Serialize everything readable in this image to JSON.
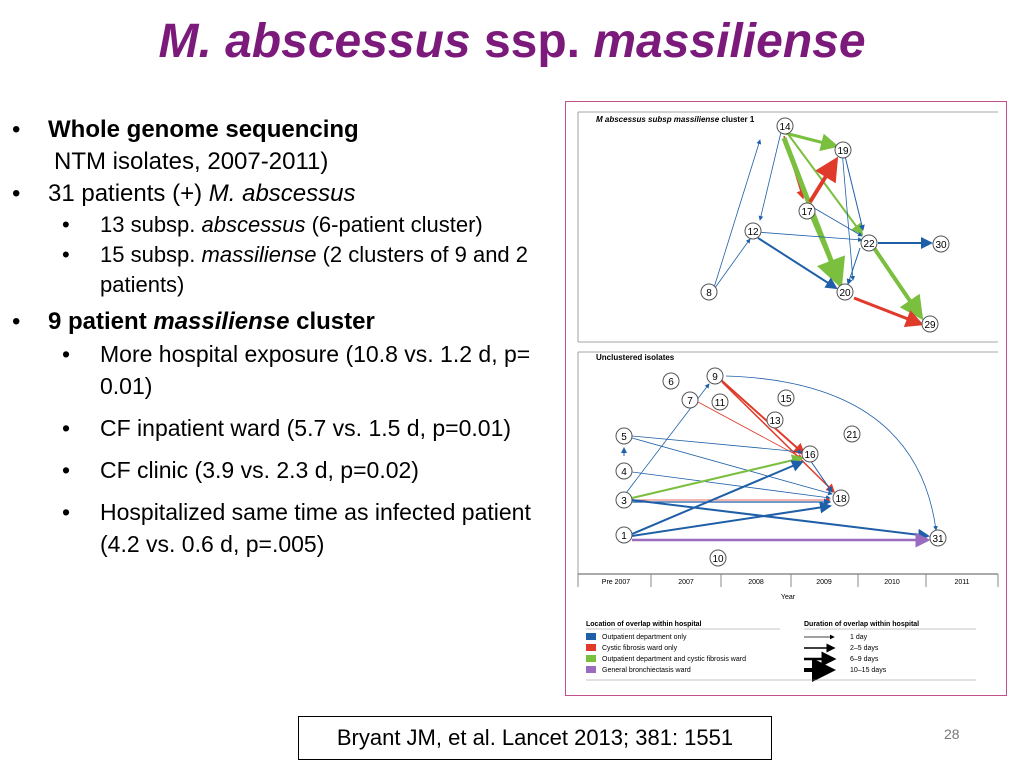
{
  "title": {
    "main": "M. abscessus",
    "middle": " ssp. ",
    "tail": "massiliense"
  },
  "bullets": {
    "wgs_label": "Whole genome sequencing",
    "wgs_sub": "NTM isolates, 2007-2011)",
    "patients_a": "31 patients (+) ",
    "patients_b": "M. abscessus",
    "sub1_a": "13 subsp. ",
    "sub1_b": "abscessus",
    "sub1_c": " (6-patient cluster)",
    "sub2_a": "15 subsp. ",
    "sub2_b": "massiliense",
    "sub2_c": " (2 clusters of 9 and 2 patients)",
    "cluster_a": "9 patient ",
    "cluster_b": "massiliense",
    "cluster_c": " cluster",
    "exp1": "More hospital exposure (10.8 vs. 1.2 d, p= 0.01)",
    "exp2": "CF inpatient ward (5.7 vs. 1.5 d, p=0.01)",
    "exp3": "CF clinic (3.9 vs. 2.3 d, p=0.02)",
    "exp4": "Hospitalized same time as infected patient (4.2 vs. 0.6 d, p=.005)"
  },
  "figure": {
    "top_title_a": "M abscessus subsp massiliense",
    "top_title_b": " cluster 1",
    "bottom_title": "Unclustered isolates",
    "years": [
      "Pre 2007",
      "2007",
      "2008",
      "2009",
      "2010",
      "2011"
    ],
    "xlabel": "Year",
    "legend_location_title": "Location of overlap within hospital",
    "legend_locations": [
      {
        "label": "Outpatient department only",
        "color": "#1f5fa8"
      },
      {
        "label": "Cystic fibrosis ward only",
        "color": "#e03a2a"
      },
      {
        "label": "Outpatient department and cystic fibrosis ward",
        "color": "#7bbf3f"
      },
      {
        "label": "General bronchiectasis ward",
        "color": "#9b6bbf"
      }
    ],
    "legend_duration_title": "Duration of overlap within hospital",
    "legend_durations": [
      "1 day",
      "2–5 days",
      "6–9 days",
      "10–15 days"
    ],
    "cluster_nodes": [
      "14",
      "19",
      "17",
      "12",
      "22",
      "30",
      "8",
      "20",
      "29"
    ],
    "unclustered_nodes": [
      "6",
      "9",
      "7",
      "11",
      "15",
      "13",
      "21",
      "5",
      "16",
      "4",
      "3",
      "18",
      "1",
      "31",
      "10"
    ]
  },
  "citation": "Bryant JM, et al. Lancet 2013; 381: 1551",
  "page_number": "28"
}
